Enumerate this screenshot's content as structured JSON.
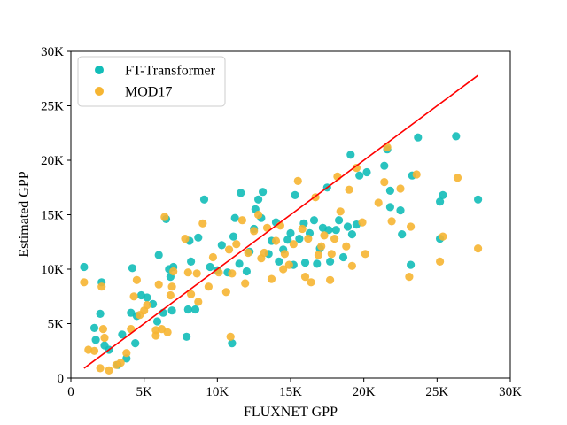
{
  "chart_data": {
    "type": "scatter",
    "title": "",
    "xlabel": "FLUXNET GPP",
    "ylabel": "Estimated GPP",
    "xlim": [
      0,
      30000
    ],
    "ylim": [
      0,
      30000
    ],
    "x_ticks": [
      0,
      5000,
      10000,
      15000,
      20000,
      25000,
      30000
    ],
    "x_tick_labels": [
      "0",
      "5K",
      "10K",
      "15K",
      "20K",
      "25K",
      "30K"
    ],
    "y_ticks": [
      0,
      5000,
      10000,
      15000,
      20000,
      25000,
      30000
    ],
    "y_tick_labels": [
      "0",
      "5K",
      "10K",
      "15K",
      "20K",
      "25K",
      "30K"
    ],
    "grid": false,
    "legend_position": "top-left",
    "series": [
      {
        "name": "FT-Transformer",
        "color": "#12bdb8",
        "points": [
          [
            900,
            10200
          ],
          [
            1600,
            4600
          ],
          [
            1700,
            3500
          ],
          [
            2000,
            5900
          ],
          [
            2100,
            8800
          ],
          [
            2300,
            3000
          ],
          [
            2600,
            2600
          ],
          [
            3200,
            1200
          ],
          [
            3500,
            4000
          ],
          [
            3800,
            1800
          ],
          [
            4100,
            6000
          ],
          [
            4200,
            10100
          ],
          [
            4400,
            3200
          ],
          [
            4500,
            5700
          ],
          [
            4800,
            7600
          ],
          [
            5200,
            7400
          ],
          [
            5600,
            6800
          ],
          [
            5900,
            5200
          ],
          [
            6000,
            11300
          ],
          [
            6300,
            6000
          ],
          [
            6500,
            14600
          ],
          [
            6700,
            10000
          ],
          [
            6800,
            9300
          ],
          [
            6900,
            6200
          ],
          [
            7000,
            10200
          ],
          [
            7900,
            3800
          ],
          [
            8000,
            6300
          ],
          [
            8100,
            12600
          ],
          [
            8200,
            10700
          ],
          [
            8500,
            6300
          ],
          [
            8700,
            12900
          ],
          [
            9100,
            16400
          ],
          [
            9500,
            10200
          ],
          [
            10000,
            9900
          ],
          [
            10300,
            12200
          ],
          [
            10700,
            9700
          ],
          [
            11000,
            3200
          ],
          [
            11100,
            13000
          ],
          [
            11200,
            14700
          ],
          [
            11500,
            10500
          ],
          [
            11600,
            17000
          ],
          [
            12000,
            9800
          ],
          [
            12200,
            11600
          ],
          [
            12500,
            13700
          ],
          [
            12600,
            15500
          ],
          [
            12800,
            16400
          ],
          [
            13000,
            14700
          ],
          [
            13100,
            17100
          ],
          [
            13500,
            11400
          ],
          [
            13700,
            12600
          ],
          [
            14000,
            14300
          ],
          [
            14200,
            10700
          ],
          [
            14500,
            11800
          ],
          [
            14800,
            12700
          ],
          [
            15000,
            13300
          ],
          [
            15200,
            10400
          ],
          [
            15300,
            16800
          ],
          [
            15600,
            12800
          ],
          [
            15900,
            14200
          ],
          [
            16000,
            10600
          ],
          [
            16300,
            13300
          ],
          [
            16600,
            14500
          ],
          [
            16800,
            10500
          ],
          [
            17000,
            11900
          ],
          [
            17200,
            13800
          ],
          [
            17500,
            17500
          ],
          [
            17600,
            13600
          ],
          [
            17700,
            10700
          ],
          [
            18100,
            13600
          ],
          [
            18300,
            14500
          ],
          [
            18600,
            11100
          ],
          [
            18900,
            13900
          ],
          [
            19100,
            20500
          ],
          [
            19200,
            13200
          ],
          [
            19500,
            14100
          ],
          [
            19700,
            18600
          ],
          [
            20200,
            18900
          ],
          [
            21400,
            19500
          ],
          [
            21600,
            21000
          ],
          [
            21800,
            15700
          ],
          [
            21800,
            17200
          ],
          [
            22500,
            15400
          ],
          [
            22600,
            13200
          ],
          [
            23200,
            10400
          ],
          [
            23300,
            18600
          ],
          [
            23700,
            22100
          ],
          [
            25200,
            16200
          ],
          [
            25200,
            12800
          ],
          [
            25400,
            16800
          ],
          [
            26300,
            22200
          ],
          [
            27800,
            16400
          ]
        ]
      },
      {
        "name": "MOD17",
        "color": "#f6b532",
        "points": [
          [
            900,
            8800
          ],
          [
            1200,
            2600
          ],
          [
            1600,
            2500
          ],
          [
            2000,
            900
          ],
          [
            2100,
            8400
          ],
          [
            2200,
            4500
          ],
          [
            2300,
            3700
          ],
          [
            2600,
            700
          ],
          [
            3100,
            1200
          ],
          [
            3400,
            1400
          ],
          [
            3800,
            2300
          ],
          [
            4100,
            4500
          ],
          [
            4300,
            7500
          ],
          [
            4500,
            9000
          ],
          [
            4700,
            5800
          ],
          [
            5000,
            6200
          ],
          [
            5200,
            6700
          ],
          [
            5800,
            4400
          ],
          [
            5800,
            3900
          ],
          [
            6000,
            8600
          ],
          [
            6200,
            4500
          ],
          [
            6400,
            14800
          ],
          [
            6600,
            4200
          ],
          [
            6800,
            7600
          ],
          [
            6900,
            8400
          ],
          [
            7000,
            9800
          ],
          [
            7800,
            12800
          ],
          [
            8000,
            9700
          ],
          [
            8200,
            7700
          ],
          [
            8600,
            9600
          ],
          [
            8700,
            7000
          ],
          [
            9000,
            14200
          ],
          [
            9400,
            8400
          ],
          [
            9700,
            11100
          ],
          [
            10100,
            9700
          ],
          [
            10600,
            7900
          ],
          [
            10800,
            11800
          ],
          [
            10900,
            3800
          ],
          [
            11000,
            9600
          ],
          [
            11300,
            12300
          ],
          [
            11700,
            14500
          ],
          [
            11900,
            8700
          ],
          [
            12100,
            11500
          ],
          [
            12500,
            13500
          ],
          [
            12800,
            15000
          ],
          [
            13000,
            11000
          ],
          [
            13200,
            11500
          ],
          [
            13400,
            13800
          ],
          [
            13700,
            9100
          ],
          [
            14000,
            12600
          ],
          [
            14300,
            14000
          ],
          [
            14500,
            10000
          ],
          [
            14600,
            11400
          ],
          [
            14900,
            10400
          ],
          [
            15200,
            12300
          ],
          [
            15500,
            18100
          ],
          [
            15800,
            13700
          ],
          [
            16000,
            9300
          ],
          [
            16200,
            12800
          ],
          [
            16400,
            8800
          ],
          [
            16700,
            16600
          ],
          [
            16900,
            11300
          ],
          [
            17100,
            12100
          ],
          [
            17300,
            13100
          ],
          [
            17700,
            9000
          ],
          [
            17800,
            11400
          ],
          [
            18000,
            12800
          ],
          [
            18200,
            18500
          ],
          [
            18400,
            15300
          ],
          [
            18800,
            12100
          ],
          [
            19000,
            17300
          ],
          [
            19200,
            10300
          ],
          [
            19500,
            19300
          ],
          [
            19900,
            14300
          ],
          [
            20100,
            11400
          ],
          [
            21000,
            16100
          ],
          [
            21400,
            18000
          ],
          [
            21600,
            21200
          ],
          [
            21900,
            14400
          ],
          [
            22500,
            17400
          ],
          [
            23100,
            9300
          ],
          [
            23200,
            13900
          ],
          [
            23600,
            18700
          ],
          [
            25200,
            10700
          ],
          [
            25400,
            13000
          ],
          [
            26400,
            18400
          ],
          [
            27800,
            11900
          ]
        ]
      }
    ],
    "fit_line": {
      "color": "#ff0000",
      "x": [
        900,
        27800
      ],
      "y": [
        900,
        27800
      ]
    }
  }
}
